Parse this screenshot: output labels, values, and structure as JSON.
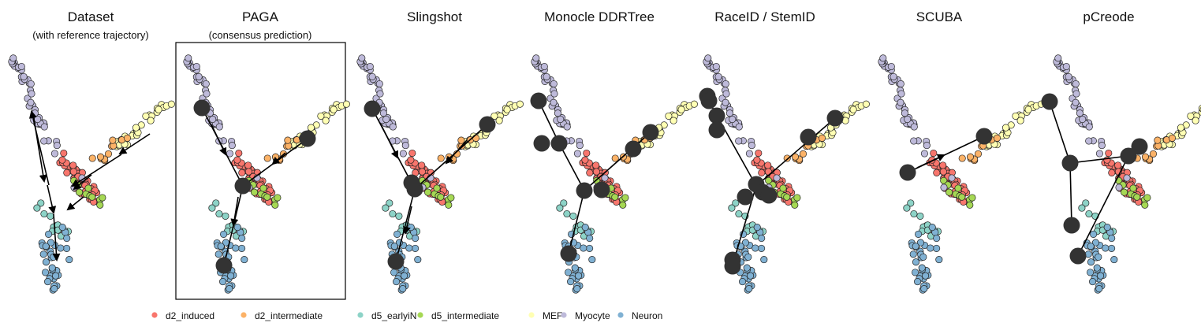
{
  "figure": {
    "legend": {
      "items": [
        {
          "label": "d2_induced",
          "color": "#F8766D"
        },
        {
          "label": "d2_intermediate",
          "color": "#FCB267"
        },
        {
          "label": "d5_earlyiN",
          "color": "#8DD3C7"
        },
        {
          "label": "d5_intermediate",
          "color": "#A6D854"
        },
        {
          "label": "MEF",
          "color": "#FFFFB3"
        },
        {
          "label": "Myocyte",
          "color": "#BEBADA"
        },
        {
          "label": "Neuron",
          "color": "#80B1D3"
        }
      ]
    }
  },
  "chart_data": [
    {
      "type": "scatter",
      "title": "Dataset",
      "subtitle": "(with reference trajectory)",
      "boxed": false,
      "trajectory": "reference-arrows"
    },
    {
      "type": "scatter",
      "title": "PAGA",
      "subtitle": "(consensus prediction)",
      "boxed": true,
      "trajectory": "predicted-milestones"
    },
    {
      "type": "scatter",
      "title": "Slingshot",
      "subtitle": "",
      "boxed": false,
      "trajectory": "predicted-milestones"
    },
    {
      "type": "scatter",
      "title": "Monocle DDRTree",
      "subtitle": "",
      "boxed": false,
      "trajectory": "predicted-milestones"
    },
    {
      "type": "scatter",
      "title": "RaceID / StemID",
      "subtitle": "",
      "boxed": false,
      "trajectory": "predicted-milestones"
    },
    {
      "type": "scatter",
      "title": "SCUBA",
      "subtitle": "",
      "boxed": false,
      "trajectory": "predicted-milestones"
    },
    {
      "type": "scatter",
      "title": "pCreode",
      "subtitle": "",
      "boxed": false,
      "trajectory": "predicted-milestones"
    }
  ]
}
